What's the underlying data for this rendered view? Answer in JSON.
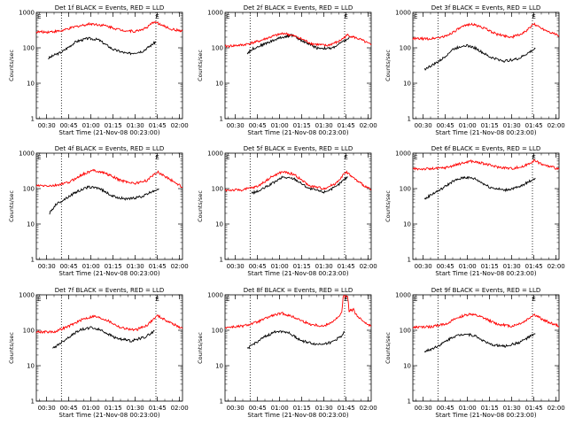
{
  "chart_data": [
    {
      "type": "line",
      "title": "Det 1f BLACK = Events, RED = LLD",
      "xlabel": "Start Time (21-Nov-08 00:23:00)",
      "ylabel": "Counts/sec",
      "yscale": "log",
      "ylim": [
        1,
        1000
      ],
      "xlim": [
        "00:23",
        "02:02"
      ],
      "x_tick_labels": [
        "00:30",
        "00:45",
        "01:00",
        "01:15",
        "01:30",
        "01:45",
        "02:00"
      ],
      "y_tick_labels": [
        "1",
        "10",
        "100",
        "1000"
      ],
      "vlines": [
        "00:40",
        "01:44"
      ],
      "markers": [
        {
          "x": "00:23",
          "label": "E"
        },
        {
          "x": "01:43",
          "label": "E"
        }
      ],
      "series": [
        {
          "name": "Events",
          "color": "#000000",
          "x": [
            "00:31",
            "00:35",
            "00:40",
            "00:50",
            "00:58",
            "01:05",
            "01:15",
            "01:25",
            "01:35",
            "01:41",
            "01:44"
          ],
          "y": [
            50,
            62,
            75,
            150,
            185,
            170,
            90,
            68,
            80,
            120,
            150
          ]
        },
        {
          "name": "LLD",
          "color": "#ff0000",
          "x": [
            "00:23",
            "00:30",
            "00:40",
            "00:50",
            "01:00",
            "01:10",
            "01:20",
            "01:30",
            "01:38",
            "01:43",
            "01:48",
            "01:55",
            "02:02"
          ],
          "y": [
            280,
            280,
            300,
            400,
            480,
            420,
            320,
            290,
            370,
            560,
            430,
            330,
            300
          ]
        }
      ]
    },
    {
      "type": "line",
      "title": "Det 2f BLACK = Events, RED = LLD",
      "xlabel": "Start Time (21-Nov-08 00:23:00)",
      "ylabel": "Counts/sec",
      "yscale": "log",
      "ylim": [
        1,
        1000
      ],
      "xlim": [
        "00:23",
        "02:02"
      ],
      "x_tick_labels": [
        "00:30",
        "00:45",
        "01:00",
        "01:15",
        "01:30",
        "01:45",
        "02:00"
      ],
      "y_tick_labels": [
        "1",
        "10",
        "100",
        "1000"
      ],
      "vlines": [
        "00:40",
        "01:44"
      ],
      "markers": [
        {
          "x": "00:23",
          "label": "E"
        },
        {
          "x": "01:43",
          "label": "E"
        }
      ],
      "series": [
        {
          "name": "Events",
          "color": "#000000",
          "x": [
            "00:38",
            "00:42",
            "00:50",
            "01:00",
            "01:08",
            "01:15",
            "01:25",
            "01:35",
            "01:42",
            "01:48"
          ],
          "y": [
            70,
            95,
            130,
            190,
            230,
            160,
            100,
            95,
            140,
            200
          ]
        },
        {
          "name": "LLD",
          "color": "#ff0000",
          "x": [
            "00:23",
            "00:35",
            "00:45",
            "00:55",
            "01:03",
            "01:12",
            "01:22",
            "01:32",
            "01:40",
            "01:46",
            "01:55",
            "02:02"
          ],
          "y": [
            110,
            120,
            150,
            210,
            260,
            200,
            130,
            115,
            150,
            230,
            170,
            120
          ]
        }
      ]
    },
    {
      "type": "line",
      "title": "Det 3f BLACK = Events, RED = LLD",
      "xlabel": "Start Time (21-Nov-08 00:23:00)",
      "ylabel": "Counts/sec",
      "yscale": "log",
      "ylim": [
        1,
        1000
      ],
      "xlim": [
        "00:23",
        "02:02"
      ],
      "x_tick_labels": [
        "00:30",
        "00:45",
        "01:00",
        "01:15",
        "01:30",
        "01:45",
        "02:00"
      ],
      "y_tick_labels": [
        "1",
        "10",
        "100",
        "1000"
      ],
      "vlines": [
        "00:40",
        "01:44"
      ],
      "markers": [
        {
          "x": "00:23",
          "label": "E"
        },
        {
          "x": "01:43",
          "label": "E"
        }
      ],
      "series": [
        {
          "name": "Events",
          "color": "#000000",
          "x": [
            "00:31",
            "00:36",
            "00:42",
            "00:50",
            "00:58",
            "01:05",
            "01:15",
            "01:25",
            "01:35",
            "01:42",
            "01:46"
          ],
          "y": [
            25,
            32,
            45,
            90,
            120,
            100,
            55,
            42,
            50,
            75,
            95
          ]
        },
        {
          "name": "LLD",
          "color": "#ff0000",
          "x": [
            "00:23",
            "00:35",
            "00:45",
            "00:55",
            "01:02",
            "01:10",
            "01:20",
            "01:30",
            "01:38",
            "01:45",
            "01:52",
            "02:02"
          ],
          "y": [
            180,
            180,
            210,
            360,
            480,
            380,
            240,
            200,
            260,
            470,
            330,
            220
          ]
        }
      ]
    },
    {
      "type": "line",
      "title": "Det 4f BLACK = Events, RED = LLD",
      "xlabel": "Start Time (21-Nov-08 00:23:00)",
      "ylabel": "Counts/sec",
      "yscale": "log",
      "ylim": [
        1,
        1000
      ],
      "xlim": [
        "00:23",
        "02:02"
      ],
      "x_tick_labels": [
        "00:30",
        "00:45",
        "01:00",
        "01:15",
        "01:30",
        "01:45",
        "02:00"
      ],
      "y_tick_labels": [
        "1",
        "10",
        "100",
        "1000"
      ],
      "vlines": [
        "00:40",
        "01:44"
      ],
      "markers": [
        {
          "x": "00:23",
          "label": "E"
        },
        {
          "x": "01:43",
          "label": "E"
        }
      ],
      "series": [
        {
          "name": "Events",
          "color": "#000000",
          "x": [
            "00:32",
            "00:36",
            "00:42",
            "00:50",
            "00:58",
            "01:05",
            "01:15",
            "01:25",
            "01:35",
            "01:42",
            "01:46"
          ],
          "y": [
            20,
            35,
            50,
            80,
            110,
            105,
            60,
            50,
            60,
            85,
            100
          ]
        },
        {
          "name": "LLD",
          "color": "#ff0000",
          "x": [
            "00:23",
            "00:35",
            "00:45",
            "00:55",
            "01:02",
            "01:10",
            "01:20",
            "01:30",
            "01:38",
            "01:45",
            "01:52",
            "02:02"
          ],
          "y": [
            120,
            120,
            150,
            260,
            330,
            270,
            170,
            140,
            170,
            300,
            200,
            110
          ]
        }
      ]
    },
    {
      "type": "line",
      "title": "Det 5f BLACK = Events, RED = LLD",
      "xlabel": "Start Time (21-Nov-08 00:23:00)",
      "ylabel": "Counts/sec",
      "yscale": "log",
      "ylim": [
        1,
        1000
      ],
      "xlim": [
        "00:23",
        "02:02"
      ],
      "x_tick_labels": [
        "00:30",
        "00:45",
        "01:00",
        "01:15",
        "01:30",
        "01:45",
        "02:00"
      ],
      "y_tick_labels": [
        "1",
        "10",
        "100",
        "1000"
      ],
      "vlines": [
        "00:40",
        "01:44"
      ],
      "markers": [
        {
          "x": "00:23",
          "label": "E"
        },
        {
          "x": "01:43",
          "label": "E"
        }
      ],
      "series": [
        {
          "name": "Events",
          "color": "#000000",
          "x": [
            "00:41",
            "00:46",
            "00:55",
            "01:02",
            "01:10",
            "01:20",
            "01:30",
            "01:38",
            "01:43",
            "01:46"
          ],
          "y": [
            75,
            85,
            140,
            210,
            190,
            100,
            80,
            110,
            170,
            220
          ]
        },
        {
          "name": "LLD",
          "color": "#ff0000",
          "x": [
            "00:23",
            "00:35",
            "00:45",
            "00:55",
            "01:02",
            "01:10",
            "01:20",
            "01:30",
            "01:38",
            "01:45",
            "01:52",
            "02:02"
          ],
          "y": [
            90,
            92,
            115,
            220,
            300,
            250,
            120,
            100,
            140,
            300,
            170,
            90
          ]
        }
      ]
    },
    {
      "type": "line",
      "title": "Det 6f BLACK = Events, RED = LLD",
      "xlabel": "Start Time (21-Nov-08 00:23:00)",
      "ylabel": "Counts/sec",
      "yscale": "log",
      "ylim": [
        1,
        1000
      ],
      "xlim": [
        "00:23",
        "02:02"
      ],
      "x_tick_labels": [
        "00:30",
        "00:45",
        "01:00",
        "01:15",
        "01:30",
        "01:45",
        "02:00"
      ],
      "y_tick_labels": [
        "1",
        "10",
        "100",
        "1000"
      ],
      "vlines": [
        "00:40",
        "01:44"
      ],
      "markers": [
        {
          "x": "00:23",
          "label": "E"
        },
        {
          "x": "01:43",
          "label": "E"
        }
      ],
      "series": [
        {
          "name": "Events",
          "color": "#000000",
          "x": [
            "00:31",
            "00:36",
            "00:42",
            "00:50",
            "00:58",
            "01:05",
            "01:15",
            "01:25",
            "01:35",
            "01:42",
            "01:46"
          ],
          "y": [
            50,
            70,
            95,
            160,
            210,
            190,
            110,
            90,
            110,
            160,
            200
          ]
        },
        {
          "name": "LLD",
          "color": "#ff0000",
          "x": [
            "00:23",
            "00:35",
            "00:45",
            "00:55",
            "01:02",
            "01:10",
            "01:20",
            "01:30",
            "01:38",
            "01:45",
            "01:52",
            "02:02"
          ],
          "y": [
            360,
            360,
            390,
            500,
            600,
            520,
            410,
            370,
            420,
            620,
            460,
            360
          ]
        }
      ]
    },
    {
      "type": "line",
      "title": "Det 7f BLACK = Events, RED = LLD",
      "xlabel": "Start Time (21-Nov-08 00:23:00)",
      "ylabel": "Counts/sec",
      "yscale": "log",
      "ylim": [
        1,
        1000
      ],
      "xlim": [
        "00:23",
        "02:02"
      ],
      "x_tick_labels": [
        "00:30",
        "00:45",
        "01:00",
        "01:15",
        "01:30",
        "01:45",
        "02:00"
      ],
      "y_tick_labels": [
        "1",
        "10",
        "100",
        "1000"
      ],
      "vlines": [
        "00:40",
        "01:44"
      ],
      "markers": [
        {
          "x": "00:23",
          "label": "E"
        },
        {
          "x": "01:43",
          "label": "E"
        }
      ],
      "series": [
        {
          "name": "Events",
          "color": "#000000",
          "x": [
            "00:34",
            "00:38",
            "00:44",
            "00:52",
            "01:00",
            "01:07",
            "01:17",
            "01:27",
            "01:37",
            "01:43"
          ],
          "y": [
            30,
            40,
            60,
            100,
            120,
            100,
            60,
            50,
            65,
            95
          ]
        },
        {
          "name": "LLD",
          "color": "#ff0000",
          "x": [
            "00:23",
            "00:35",
            "00:45",
            "00:55",
            "01:02",
            "01:10",
            "01:20",
            "01:30",
            "01:38",
            "01:45",
            "01:52",
            "02:02"
          ],
          "y": [
            90,
            90,
            130,
            210,
            250,
            200,
            120,
            100,
            140,
            260,
            180,
            110
          ]
        }
      ]
    },
    {
      "type": "line",
      "title": "Det 8f BLACK = Events, RED = LLD",
      "xlabel": "Start Time (21-Nov-08 00:23:00)",
      "ylabel": "Counts/sec",
      "yscale": "log",
      "ylim": [
        1,
        1000
      ],
      "xlim": [
        "00:23",
        "02:02"
      ],
      "x_tick_labels": [
        "00:30",
        "00:45",
        "01:00",
        "01:15",
        "01:30",
        "01:45",
        "02:00"
      ],
      "y_tick_labels": [
        "1",
        "10",
        "100",
        "1000"
      ],
      "vlines": [
        "00:40",
        "01:44"
      ],
      "markers": [
        {
          "x": "00:23",
          "label": "E"
        },
        {
          "x": "01:43",
          "label": "E"
        }
      ],
      "series": [
        {
          "name": "Events",
          "color": "#000000",
          "x": [
            "00:38",
            "00:42",
            "00:50",
            "00:58",
            "01:05",
            "01:15",
            "01:25",
            "01:35",
            "01:42",
            "01:44"
          ],
          "y": [
            30,
            40,
            65,
            95,
            90,
            50,
            40,
            45,
            70,
            90
          ]
        },
        {
          "name": "LLD",
          "color": "#ff0000",
          "x": [
            "00:23",
            "00:35",
            "00:45",
            "00:55",
            "01:02",
            "01:10",
            "01:20",
            "01:30",
            "01:38",
            "01:42",
            "01:43",
            "01:46",
            "01:47",
            "01:50",
            "01:53",
            "02:02"
          ],
          "y": [
            120,
            130,
            170,
            260,
            300,
            230,
            150,
            130,
            200,
            300,
            900,
            900,
            350,
            380,
            230,
            130
          ]
        }
      ]
    },
    {
      "type": "line",
      "title": "Det 9f BLACK = Events, RED = LLD",
      "xlabel": "Start Time (21-Nov-08 00:23:00)",
      "ylabel": "Counts/sec",
      "yscale": "log",
      "ylim": [
        1,
        1000
      ],
      "xlim": [
        "00:23",
        "02:02"
      ],
      "x_tick_labels": [
        "00:30",
        "00:45",
        "01:00",
        "01:15",
        "01:30",
        "01:45",
        "02:00"
      ],
      "y_tick_labels": [
        "1",
        "10",
        "100",
        "1000"
      ],
      "vlines": [
        "00:40",
        "01:44"
      ],
      "markers": [
        {
          "x": "00:23",
          "label": "E"
        },
        {
          "x": "01:43",
          "label": "E"
        }
      ],
      "series": [
        {
          "name": "Events",
          "color": "#000000",
          "x": [
            "00:31",
            "00:36",
            "00:42",
            "00:50",
            "00:58",
            "01:05",
            "01:15",
            "01:25",
            "01:35",
            "01:42",
            "01:46"
          ],
          "y": [
            25,
            30,
            40,
            65,
            80,
            70,
            40,
            35,
            45,
            65,
            80
          ]
        },
        {
          "name": "LLD",
          "color": "#ff0000",
          "x": [
            "00:23",
            "00:35",
            "00:45",
            "00:55",
            "01:02",
            "01:10",
            "01:20",
            "01:30",
            "01:38",
            "01:45",
            "01:52",
            "02:02"
          ],
          "y": [
            120,
            125,
            150,
            240,
            290,
            230,
            150,
            130,
            170,
            280,
            190,
            130
          ]
        }
      ]
    }
  ]
}
